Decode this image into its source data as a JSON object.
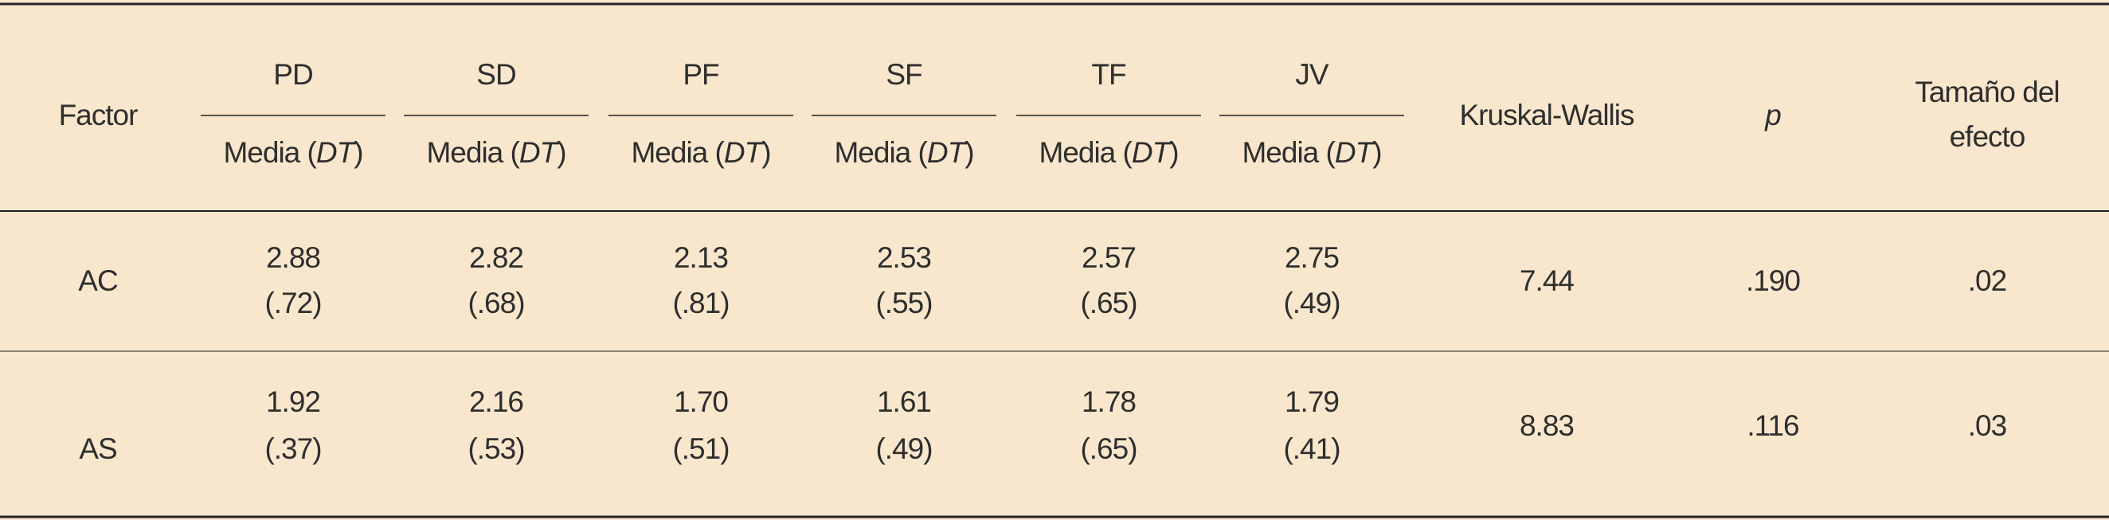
{
  "table": {
    "header": {
      "factor": "Factor",
      "groups": [
        "PD",
        "SD",
        "PF",
        "SF",
        "TF",
        "JV"
      ],
      "subheaders": [
        [
          "Media (",
          "DT",
          ")"
        ],
        [
          "Media (",
          "DT",
          ")"
        ],
        [
          "Media (",
          "DT",
          ")"
        ],
        [
          "Media (",
          "DT",
          ")"
        ],
        [
          "Media (",
          "DT",
          ")"
        ],
        [
          "Media (",
          "DT",
          ")"
        ]
      ],
      "kruskal": "Kruskal-Wallis",
      "p": "p",
      "effect": [
        "Tamaño del",
        "efecto"
      ]
    },
    "rows": [
      {
        "factor": "AC",
        "means": [
          "2.88",
          "2.82",
          "2.13",
          "2.53",
          "2.57",
          "2.75"
        ],
        "sds": [
          "(.72)",
          "(.68)",
          "(.81)",
          "(.55)",
          "(.65)",
          "(.49)"
        ],
        "kruskal": "7.44",
        "p": ".190",
        "effect": ".02"
      },
      {
        "factor": "AS",
        "means": [
          "1.92",
          "2.16",
          "1.70",
          "1.61",
          "1.78",
          "1.79"
        ],
        "sds": [
          "(.37)",
          "(.53)",
          "(.51)",
          "(.49)",
          "(.65)",
          "(.41)"
        ],
        "kruskal": "8.83",
        "p": ".116",
        "effect": ".03"
      }
    ]
  }
}
